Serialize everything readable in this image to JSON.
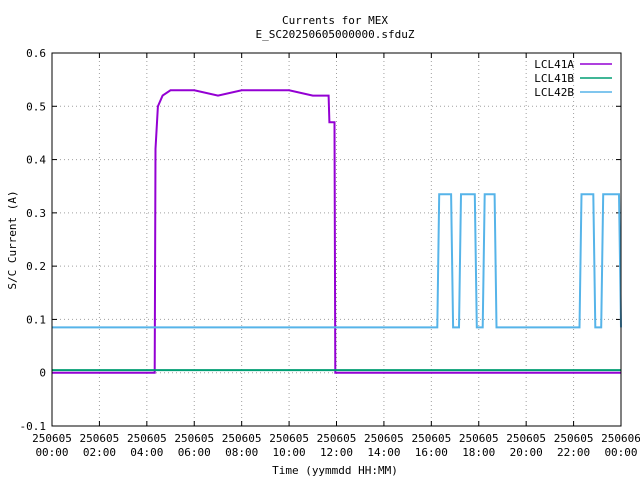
{
  "chart_data": {
    "type": "line",
    "title": "Currents for MEX",
    "subtitle": "E_SC20250605000000.sfduZ",
    "xlabel": "Time (yymmdd HH:MM)",
    "ylabel": "S/C Current (A)",
    "xlim": [
      "250605 00:00",
      "250606 00:00"
    ],
    "ylim": [
      -0.1,
      0.6
    ],
    "grid": true,
    "legend_position": "top-right",
    "x_ticks": [
      {
        "date": "250605",
        "time": "00:00"
      },
      {
        "date": "250605",
        "time": "02:00"
      },
      {
        "date": "250605",
        "time": "04:00"
      },
      {
        "date": "250605",
        "time": "06:00"
      },
      {
        "date": "250605",
        "time": "08:00"
      },
      {
        "date": "250605",
        "time": "10:00"
      },
      {
        "date": "250605",
        "time": "12:00"
      },
      {
        "date": "250605",
        "time": "14:00"
      },
      {
        "date": "250605",
        "time": "16:00"
      },
      {
        "date": "250605",
        "time": "18:00"
      },
      {
        "date": "250605",
        "time": "20:00"
      },
      {
        "date": "250605",
        "time": "22:00"
      },
      {
        "date": "250606",
        "time": "00:00"
      }
    ],
    "y_ticks": [
      "-0.1",
      "0",
      "0.1",
      "0.2",
      "0.3",
      "0.4",
      "0.5",
      "0.6"
    ],
    "series": [
      {
        "name": "LCL41A",
        "color": "#9400d3",
        "points": [
          [
            "250605 00:00",
            0.0
          ],
          [
            "250605 04:20",
            0.0
          ],
          [
            "250605 04:22",
            0.42
          ],
          [
            "250605 04:28",
            0.5
          ],
          [
            "250605 04:40",
            0.52
          ],
          [
            "250605 05:00",
            0.53
          ],
          [
            "250605 06:00",
            0.53
          ],
          [
            "250605 07:00",
            0.52
          ],
          [
            "250605 08:00",
            0.53
          ],
          [
            "250605 09:00",
            0.53
          ],
          [
            "250605 10:00",
            0.53
          ],
          [
            "250605 11:00",
            0.52
          ],
          [
            "250605 11:40",
            0.52
          ],
          [
            "250605 11:42",
            0.47
          ],
          [
            "250605 11:55",
            0.47
          ],
          [
            "250605 11:57",
            0.0
          ],
          [
            "250606 00:00",
            0.0
          ]
        ]
      },
      {
        "name": "LCL41B",
        "color": "#009e73",
        "points": [
          [
            "250605 00:00",
            0.005
          ],
          [
            "250606 00:00",
            0.005
          ]
        ]
      },
      {
        "name": "LCL42B",
        "color": "#56b4e9",
        "points": [
          [
            "250605 00:00",
            0.085
          ],
          [
            "250605 16:15",
            0.085
          ],
          [
            "250605 16:20",
            0.335
          ],
          [
            "250605 16:50",
            0.335
          ],
          [
            "250605 16:55",
            0.085
          ],
          [
            "250605 17:10",
            0.085
          ],
          [
            "250605 17:15",
            0.335
          ],
          [
            "250605 17:50",
            0.335
          ],
          [
            "250605 17:55",
            0.085
          ],
          [
            "250605 18:10",
            0.085
          ],
          [
            "250605 18:15",
            0.335
          ],
          [
            "250605 18:40",
            0.335
          ],
          [
            "250605 18:45",
            0.085
          ],
          [
            "250605 22:15",
            0.085
          ],
          [
            "250605 22:20",
            0.335
          ],
          [
            "250605 22:50",
            0.335
          ],
          [
            "250605 22:55",
            0.085
          ],
          [
            "250605 23:10",
            0.085
          ],
          [
            "250605 23:15",
            0.335
          ],
          [
            "250605 23:55",
            0.335
          ],
          [
            "250606 00:00",
            0.085
          ]
        ]
      }
    ]
  }
}
